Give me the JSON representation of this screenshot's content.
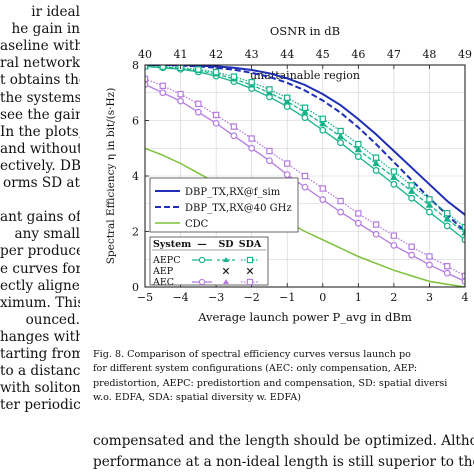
{
  "left_column": [
    "ir ideal",
    "he gain in",
    "aseline with",
    "ral networks.",
    "t obtains the",
    "the systems",
    "see the gain",
    "In the plots,",
    "and without",
    "ectively. DBP",
    "orms SD at",
    "",
    "ant gains of",
    "any small",
    "per produces",
    "e curves for",
    "ectly aligned",
    "ximum. This",
    "ounced.",
    "hanges with",
    "tarting from",
    "to a distance",
    "with soliton",
    "ter periodic"
  ],
  "figure": {
    "banner": "unattainable region",
    "colors": {
      "dbp_fsim": "#1f2fb5",
      "dbp_40": "#1f2fb5",
      "cdc": "#7dc13a",
      "aepc": "#16b38a",
      "aep": "#222222",
      "aec": "#b57be0",
      "banner": "#999999"
    },
    "legend1": {
      "items": [
        "DBP_TX,RX@f_sim",
        "DBP_TX,RX@40 GHz",
        "CDC"
      ]
    },
    "legend2": {
      "header": [
        "System",
        "—",
        "SD",
        "SDA"
      ],
      "rows": [
        "AEPC",
        "AEP",
        "AEC"
      ]
    }
  },
  "chart_data": {
    "type": "line",
    "title": "",
    "xlabel": "Average launch power P_avg in dBm",
    "x2label": "OSNR in dB",
    "ylabel": "Spectral Efficiency η in bit/(s·Hz)",
    "xlim": [
      -5,
      4
    ],
    "ylim": [
      0,
      8
    ],
    "x_ticks": [
      "−5",
      "−4",
      "−3",
      "−2",
      "−1",
      "0",
      "1",
      "2",
      "3",
      "4"
    ],
    "y_ticks": [
      "0",
      "2",
      "4",
      "6",
      "8"
    ],
    "x2_ticks": [
      "40",
      "41",
      "42",
      "43",
      "44",
      "45",
      "46",
      "47",
      "48",
      "49"
    ],
    "x": [
      -5,
      -4.5,
      -4,
      -3.5,
      -3,
      -2.5,
      -2,
      -1.5,
      -1,
      -0.5,
      0,
      0.5,
      1,
      1.5,
      2,
      2.5,
      3,
      3.5,
      4
    ],
    "series": [
      {
        "name": "DBP_TX,RX@f_sim",
        "style": "solid",
        "values": [
          8.0,
          8.0,
          8.0,
          7.98,
          7.95,
          7.9,
          7.82,
          7.7,
          7.52,
          7.28,
          6.95,
          6.55,
          6.05,
          5.5,
          4.9,
          4.3,
          3.7,
          3.1,
          2.6
        ]
      },
      {
        "name": "DBP_TX,RX@40 GHz",
        "style": "dashed",
        "values": [
          8.0,
          8.0,
          7.98,
          7.95,
          7.9,
          7.83,
          7.72,
          7.57,
          7.36,
          7.08,
          6.72,
          6.28,
          5.75,
          5.15,
          4.5,
          3.85,
          3.2,
          2.6,
          2.0
        ]
      },
      {
        "name": "CDC",
        "style": "solid",
        "values": [
          5.0,
          4.75,
          4.45,
          4.1,
          3.75,
          3.4,
          3.05,
          2.7,
          2.35,
          2.0,
          1.7,
          1.4,
          1.1,
          0.85,
          0.6,
          0.4,
          0.2,
          0.1,
          0.0
        ]
      },
      {
        "name": "AEPC",
        "style": "solid",
        "values": [
          7.95,
          7.9,
          7.85,
          7.75,
          7.6,
          7.4,
          7.15,
          6.85,
          6.5,
          6.1,
          5.65,
          5.2,
          4.7,
          4.2,
          3.7,
          3.2,
          2.7,
          2.2,
          1.7
        ]
      },
      {
        "name": "AEPC SD",
        "style": "dashed",
        "values": [
          7.95,
          7.92,
          7.88,
          7.8,
          7.68,
          7.5,
          7.28,
          7.0,
          6.68,
          6.3,
          5.88,
          5.42,
          4.95,
          4.45,
          3.95,
          3.45,
          2.95,
          2.45,
          1.95
        ]
      },
      {
        "name": "AEPC SDA",
        "style": "dotted",
        "values": [
          7.95,
          7.94,
          7.9,
          7.84,
          7.74,
          7.58,
          7.38,
          7.12,
          6.82,
          6.46,
          6.06,
          5.62,
          5.15,
          4.66,
          4.16,
          3.66,
          3.16,
          2.66,
          2.16
        ]
      },
      {
        "name": "AEC",
        "style": "solid",
        "values": [
          7.3,
          7.0,
          6.7,
          6.3,
          5.9,
          5.45,
          5.0,
          4.55,
          4.05,
          3.6,
          3.15,
          2.7,
          2.3,
          1.9,
          1.5,
          1.15,
          0.8,
          0.5,
          0.2
        ]
      },
      {
        "name": "AEC SDA",
        "style": "dotted",
        "values": [
          7.5,
          7.25,
          6.95,
          6.6,
          6.2,
          5.78,
          5.35,
          4.9,
          4.45,
          4.0,
          3.55,
          3.1,
          2.65,
          2.25,
          1.85,
          1.45,
          1.1,
          0.75,
          0.4
        ]
      }
    ],
    "annotations": [
      "unattainable region"
    ],
    "grid": true,
    "legend": "lower-left"
  },
  "caption": [
    "Fig. 8.   Comparison of spectral efficiency curves versus launch po",
    "for different system configurations (AEC: only compensation, AEP:",
    "predistortion, AEPC: predistortion and compensation, SD: spatial diversi",
    "w.o. EDFA, SDA: spatial diversity w. EDFA)"
  ],
  "body_text": [
    "compensated and the length should be optimized. Although",
    "performance at a non-ideal length is still superior to the c"
  ]
}
